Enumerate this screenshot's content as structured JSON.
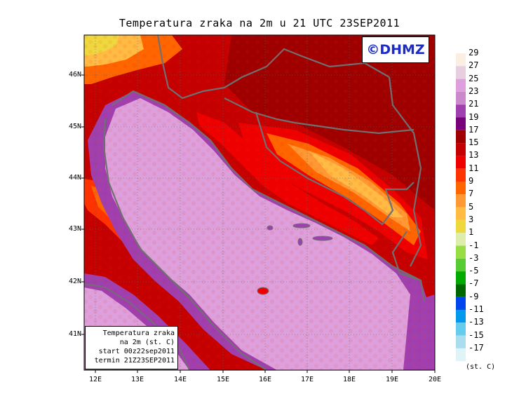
{
  "title": "Temperatura zraka na 2m u 21 UTC 23SEP2011",
  "logo_text": "©DHMZ",
  "info": {
    "line1": "Temperatura zraka",
    "line2": "na 2m (st. C)",
    "line3": "start 00z22sep2011",
    "line4": "termin 21Z23SEP2011"
  },
  "lat_labels": [
    "46N",
    "45N",
    "44N",
    "43N",
    "42N",
    "41N"
  ],
  "lon_labels": [
    "12E",
    "13E",
    "14E",
    "15E",
    "16E",
    "17E",
    "18E",
    "19E",
    "20E"
  ],
  "colorbar": {
    "unit": "(st. C)",
    "labels": [
      "29",
      "27",
      "25",
      "23",
      "21",
      "19",
      "17",
      "15",
      "13",
      "11",
      "9",
      "7",
      "5",
      "3",
      "1",
      "-1",
      "-3",
      "-5",
      "-7",
      "-9",
      "-11",
      "-13",
      "-15",
      "-17"
    ],
    "colors": [
      "#fbeee2",
      "#e8cfe0",
      "#dda0dd",
      "#cc88cc",
      "#a040b0",
      "#78007a",
      "#9e0000",
      "#c40000",
      "#ee0000",
      "#ff3300",
      "#ff6600",
      "#ff9933",
      "#ffbb44",
      "#eed83e",
      "#ddeeaa",
      "#99dd44",
      "#55cc33",
      "#00aa00",
      "#006600",
      "#0044ee",
      "#0099ee",
      "#66ccee",
      "#aaddee",
      "#e0f4f8"
    ]
  }
}
